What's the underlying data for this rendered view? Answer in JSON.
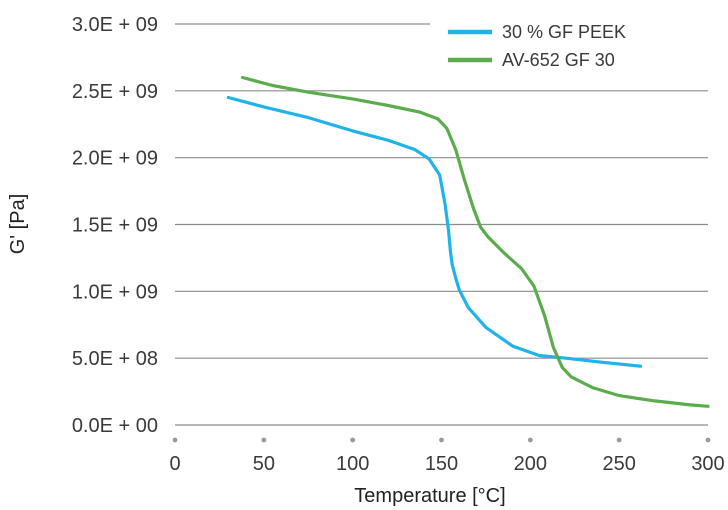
{
  "chart_data": {
    "type": "line",
    "xlabel": "Temperature [°C]",
    "ylabel": "G' [Pa]",
    "xlim": [
      0,
      300
    ],
    "ylim": [
      0,
      3000000000
    ],
    "x_ticks": [
      0,
      50,
      100,
      150,
      200,
      250,
      300
    ],
    "x_tick_labels": [
      "0",
      "50",
      "100",
      "150",
      "200",
      "250",
      "300"
    ],
    "y_ticks": [
      0,
      500000000,
      1000000000,
      1500000000,
      2000000000,
      2500000000,
      3000000000
    ],
    "y_tick_labels": [
      "0.0E + 00",
      "5.0E + 08",
      "1.0E + 09",
      "1.5E + 09",
      "2.0E + 09",
      "2.5E + 09",
      "3.0E + 09"
    ],
    "grid": "horizontal",
    "legend_position": "top-right",
    "series": [
      {
        "name": "30 % GF PEEK",
        "color": "#1fb3e8",
        "x": [
          30,
          50,
          75,
          100,
          120,
          135,
          143,
          149,
          152,
          154,
          155,
          156,
          158,
          160,
          165,
          175,
          190,
          205,
          220,
          240,
          262
        ],
        "y": [
          2450000000,
          2380000000,
          2300000000,
          2200000000,
          2130000000,
          2060000000,
          1990000000,
          1870000000,
          1650000000,
          1450000000,
          1300000000,
          1200000000,
          1100000000,
          1010000000,
          880000000,
          730000000,
          590000000,
          520000000,
          500000000,
          470000000,
          440000000
        ]
      },
      {
        "name": "AV-652 GF 30",
        "color": "#5aac4c",
        "x": [
          38,
          55,
          75,
          100,
          120,
          138,
          148,
          153,
          158,
          163,
          168,
          172,
          176,
          185,
          195,
          202,
          208,
          213,
          218,
          223,
          235,
          250,
          270,
          290,
          300
        ],
        "y": [
          2600000000,
          2540000000,
          2490000000,
          2440000000,
          2390000000,
          2340000000,
          2290000000,
          2220000000,
          2060000000,
          1830000000,
          1620000000,
          1480000000,
          1410000000,
          1290000000,
          1170000000,
          1040000000,
          820000000,
          580000000,
          430000000,
          360000000,
          280000000,
          220000000,
          180000000,
          150000000,
          140000000
        ]
      }
    ]
  }
}
